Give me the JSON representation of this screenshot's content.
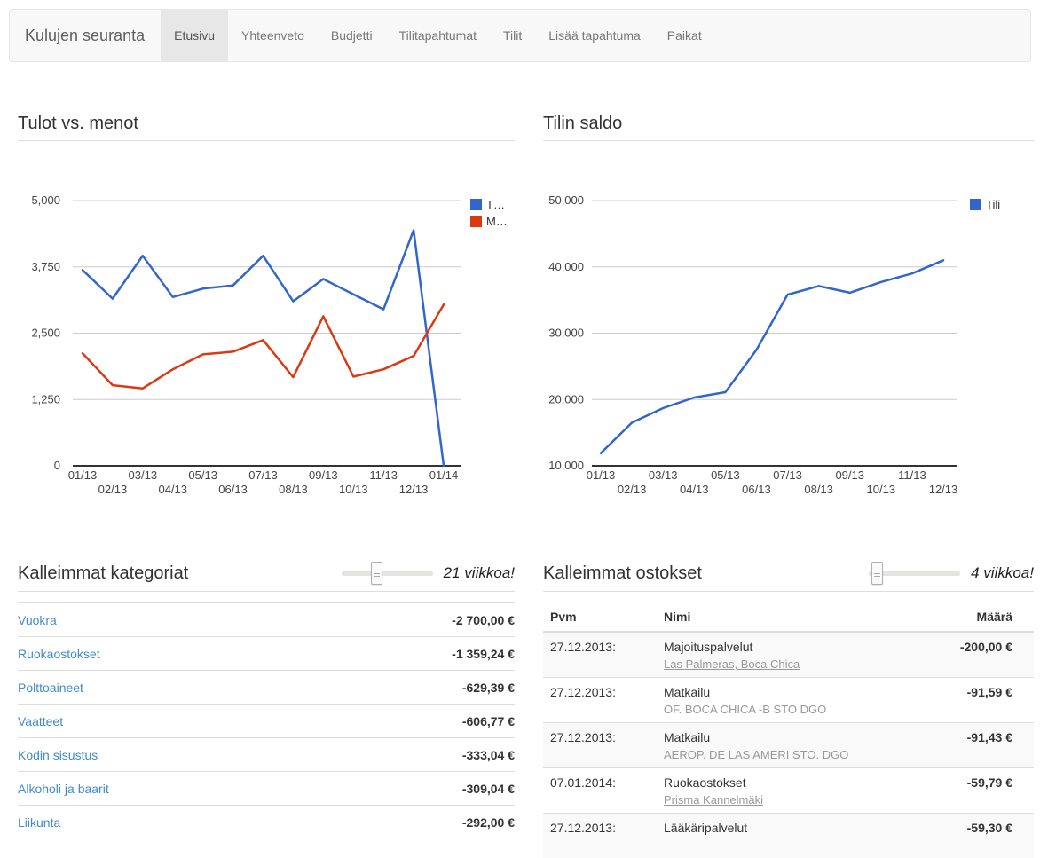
{
  "navbar": {
    "brand": "Kulujen seuranta",
    "tabs": [
      {
        "label": "Etusivu",
        "active": true
      },
      {
        "label": "Yhteenveto",
        "active": false
      },
      {
        "label": "Budjetti",
        "active": false
      },
      {
        "label": "Tilitapahtumat",
        "active": false
      },
      {
        "label": "Tilit",
        "active": false
      },
      {
        "label": "Lisää tapahtuma",
        "active": false
      },
      {
        "label": "Paikat",
        "active": false
      }
    ]
  },
  "chart_data": [
    {
      "type": "line",
      "title": "Tulot vs. menot",
      "x": [
        "01/13",
        "02/13",
        "03/13",
        "04/13",
        "05/13",
        "06/13",
        "07/13",
        "08/13",
        "09/13",
        "10/13",
        "11/13",
        "12/13",
        "01/14"
      ],
      "series": [
        {
          "name": "T…",
          "color": "#3366cc",
          "values": [
            3690,
            3150,
            3960,
            3180,
            3340,
            3400,
            3960,
            3100,
            3520,
            3230,
            2950,
            4440,
            0
          ]
        },
        {
          "name": "M…",
          "color": "#dc3912",
          "values": [
            2120,
            1520,
            1460,
            1820,
            2100,
            2150,
            2370,
            1670,
            2820,
            1680,
            1820,
            2070,
            3040
          ]
        }
      ],
      "ylim": [
        0,
        5000
      ],
      "yticks": [
        {
          "v": 0,
          "label": "0"
        },
        {
          "v": 1250,
          "label": "1,250"
        },
        {
          "v": 2500,
          "label": "2,500"
        },
        {
          "v": 3750,
          "label": "3,750"
        },
        {
          "v": 5000,
          "label": "5,000"
        }
      ],
      "legend_position": "right",
      "grid": true
    },
    {
      "type": "line",
      "title": "Tilin saldo",
      "x": [
        "01/13",
        "02/13",
        "03/13",
        "04/13",
        "05/13",
        "06/13",
        "07/13",
        "08/13",
        "09/13",
        "10/13",
        "11/13",
        "12/13"
      ],
      "series": [
        {
          "name": "Tili",
          "color": "#3366cc",
          "values": [
            11900,
            16500,
            18700,
            20300,
            21100,
            27500,
            35800,
            37100,
            36100,
            37700,
            39000,
            41000
          ]
        }
      ],
      "ylim": [
        10000,
        50000
      ],
      "yticks": [
        {
          "v": 10000,
          "label": "10,000"
        },
        {
          "v": 20000,
          "label": "20,000"
        },
        {
          "v": 30000,
          "label": "30,000"
        },
        {
          "v": 40000,
          "label": "40,000"
        },
        {
          "v": 50000,
          "label": "50,000"
        }
      ],
      "legend_position": "right",
      "grid": true
    }
  ],
  "categories_section": {
    "title": "Kalleimmat kategoriat",
    "weeks_label": "21 viikkoa!",
    "slider_percent": 38,
    "items": [
      {
        "name": "Vuokra",
        "amount": "-2 700,00 €"
      },
      {
        "name": "Ruokaostokset",
        "amount": "-1 359,24 €"
      },
      {
        "name": "Polttoaineet",
        "amount": "-629,39 €"
      },
      {
        "name": "Vaatteet",
        "amount": "-606,77 €"
      },
      {
        "name": "Kodin sisustus",
        "amount": "-333,04 €"
      },
      {
        "name": "Alkoholi ja baarit",
        "amount": "-309,04 €"
      },
      {
        "name": "Liikunta",
        "amount": "-292,00 €"
      }
    ]
  },
  "purchases_section": {
    "title": "Kalleimmat ostokset",
    "weeks_label": "4 viikkoa!",
    "slider_percent": 9,
    "headers": {
      "date": "Pvm",
      "name": "Nimi",
      "amount": "Määrä"
    },
    "rows": [
      {
        "date": "27.12.2013:",
        "name": "Majoituspalvelut",
        "place": "Las Palmeras, Boca Chica",
        "place_is_link": true,
        "amount": "-200,00 €"
      },
      {
        "date": "27.12.2013:",
        "name": "Matkailu",
        "place": "OF. BOCA CHICA -B STO DGO",
        "place_is_link": false,
        "amount": "-91,59 €"
      },
      {
        "date": "27.12.2013:",
        "name": "Matkailu",
        "place": "AEROP. DE LAS AMERI STO. DGO",
        "place_is_link": false,
        "amount": "-91,43 €"
      },
      {
        "date": "07.01.2014:",
        "name": "Ruokaostokset",
        "place": "Prisma Kannelmäki",
        "place_is_link": true,
        "amount": "-59,79 €"
      },
      {
        "date": "27.12.2013:",
        "name": "Lääkäripalvelut",
        "place": "",
        "place_is_link": false,
        "amount": "-59,30 €"
      }
    ]
  },
  "colors": {
    "accent_blue": "#3366cc",
    "accent_red": "#dc3912",
    "link": "#428bca",
    "navbar_bg": "#f8f8f8",
    "navbar_active_bg": "#e7e7e7",
    "gridline": "#cccccc",
    "stripe": "#f9f9f9",
    "divider": "#dddddd"
  }
}
